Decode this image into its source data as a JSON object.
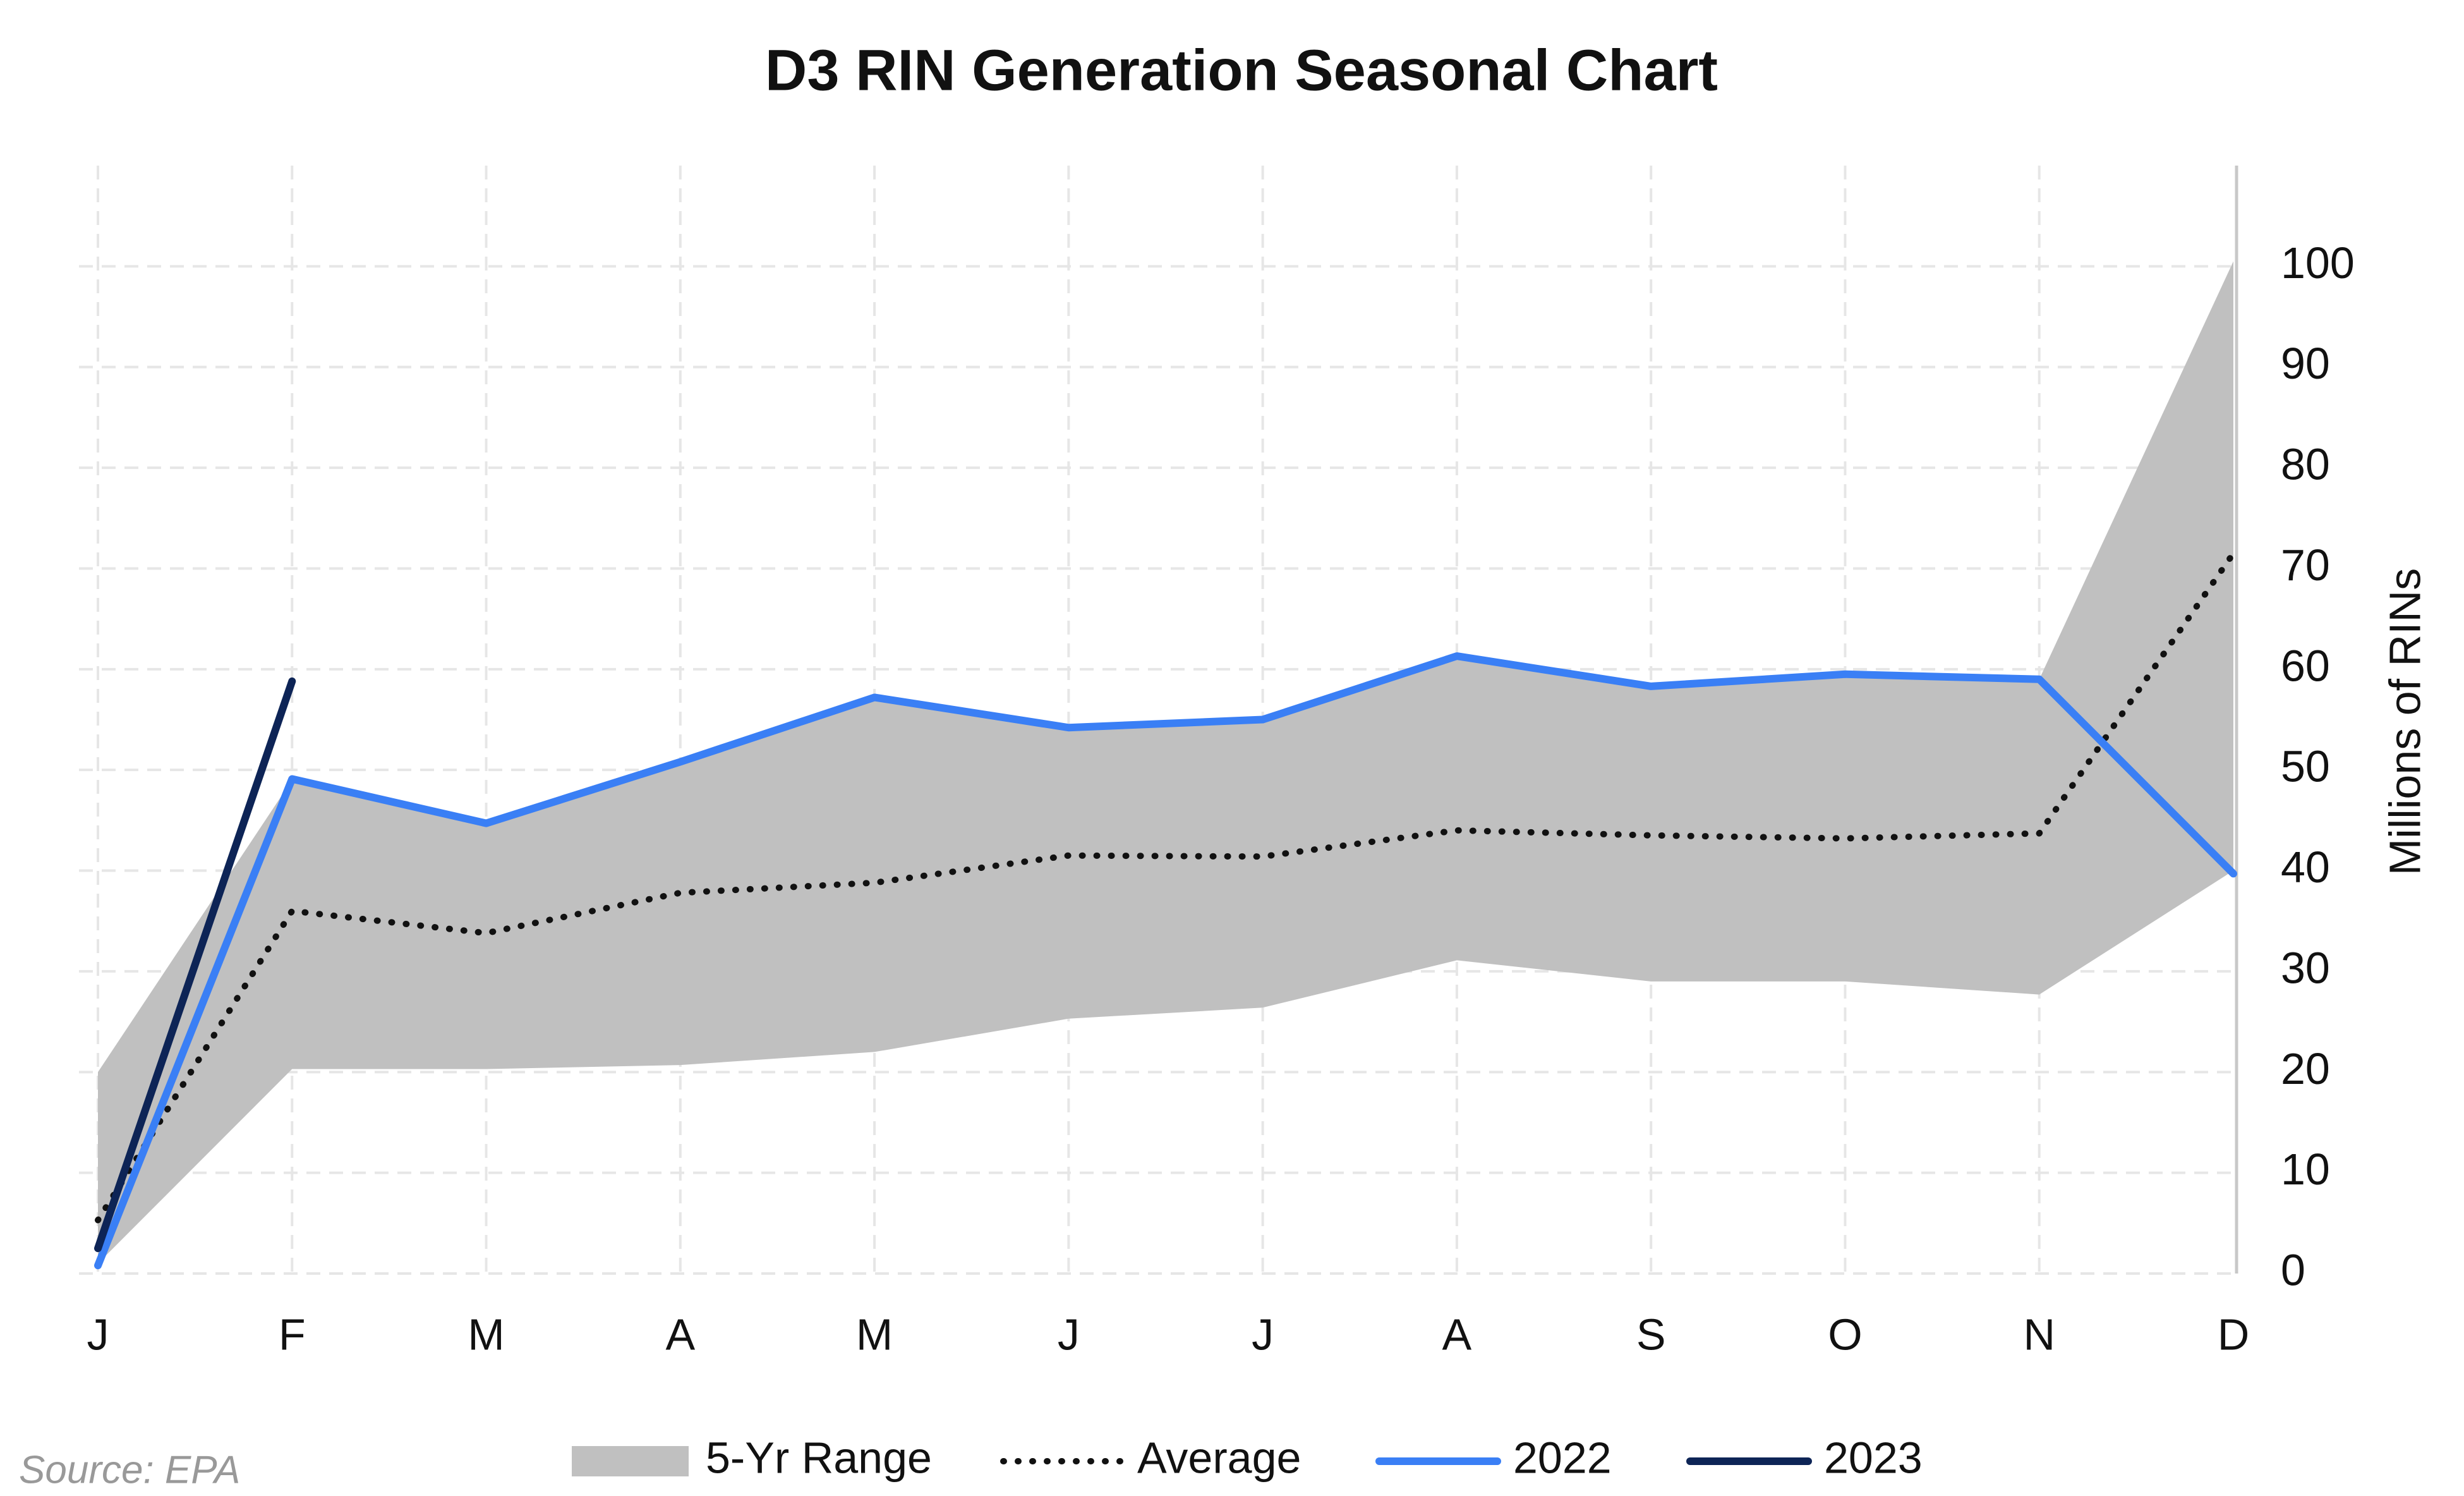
{
  "chart_data": {
    "type": "line",
    "title": "D3 RIN Generation Seasonal Chart",
    "y_axis_label": "Millions of RINs",
    "source": "Source: EPA",
    "categories": [
      "J",
      "F",
      "M",
      "A",
      "M",
      "J",
      "J",
      "A",
      "S",
      "O",
      "N",
      "D"
    ],
    "ylim": [
      0,
      110
    ],
    "yticks": [
      0,
      10,
      20,
      30,
      40,
      50,
      60,
      70,
      80,
      90,
      100
    ],
    "grid": true,
    "legend": "bottom",
    "range": {
      "name": "5-Yr Range",
      "color": "#c0c0c0",
      "high": [
        20,
        49,
        44.7,
        50.8,
        57.2,
        54.2,
        55,
        61.3,
        58.3,
        59.5,
        59,
        100.5
      ],
      "low": [
        1,
        20.3,
        20.3,
        20.7,
        22,
        25.3,
        26.4,
        31.1,
        29,
        29,
        27.7,
        40
      ]
    },
    "series": [
      {
        "name": "Average",
        "color": "#111111",
        "dash": "dotted",
        "values": [
          5.3,
          36,
          33.8,
          37.8,
          38.8,
          41.5,
          41.4,
          44,
          43.5,
          43.2,
          43.7,
          71.5
        ]
      },
      {
        "name": "2022",
        "color": "#3a7ff5",
        "dash": "solid",
        "values": [
          0.8,
          49.1,
          44.7,
          50.8,
          57.2,
          54.2,
          55,
          61.3,
          58.3,
          59.5,
          59,
          39.7
        ]
      },
      {
        "name": "2023",
        "color": "#0d2456",
        "dash": "solid",
        "values": [
          2.5,
          58.8,
          null,
          null,
          null,
          null,
          null,
          null,
          null,
          null,
          null,
          null
        ]
      }
    ]
  }
}
